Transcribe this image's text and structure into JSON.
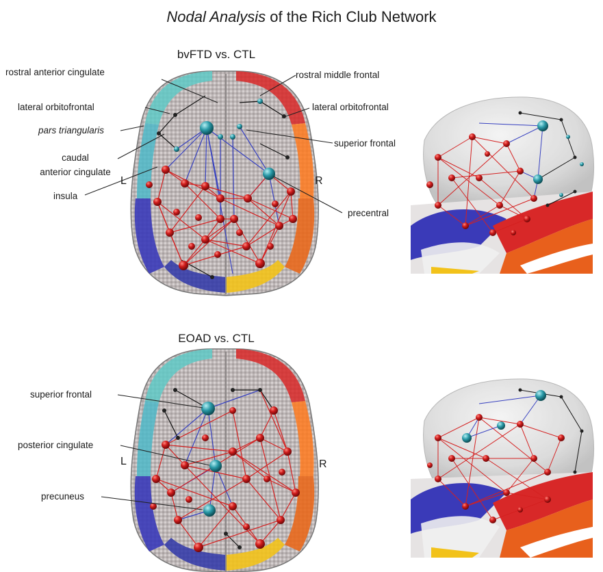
{
  "title": {
    "italic_part": "Nodal Analysis",
    "rest": " of the Rich Club Network"
  },
  "panel_top": {
    "title": "bvFTD vs. CTL",
    "left_marker": "L",
    "right_marker": "R",
    "labels": {
      "rostral_anterior_cingulate": "rostral anterior cingulate",
      "lateral_orbitofrontal_left": "lateral orbitofrontal",
      "pars_triangularis": "pars triangularis",
      "caudal": "caudal",
      "anterior_cingulate": "anterior cingulate",
      "insula": "insula",
      "rostral_middle_frontal": "rostral middle frontal",
      "lateral_orbitofrontal_right": "lateral orbitofrontal",
      "superior_frontal": "superior frontal",
      "precentral": "precentral"
    }
  },
  "panel_bottom": {
    "title": "EOAD vs. CTL",
    "left_marker": "L",
    "right_marker": "R",
    "labels": {
      "superior_frontal": "superior frontal",
      "posterior_cingulate": "posterior cingulate",
      "precuneus": "precuneus"
    }
  },
  "colors": {
    "node_red": "#c8141a",
    "hub_teal": "#2a9aa8",
    "edge_red": "#d42020",
    "edge_blue": "#3640c0",
    "edge_black": "#111111",
    "brain_gray": "#b8b4b4",
    "glass_gray": "#d8d8d8"
  }
}
